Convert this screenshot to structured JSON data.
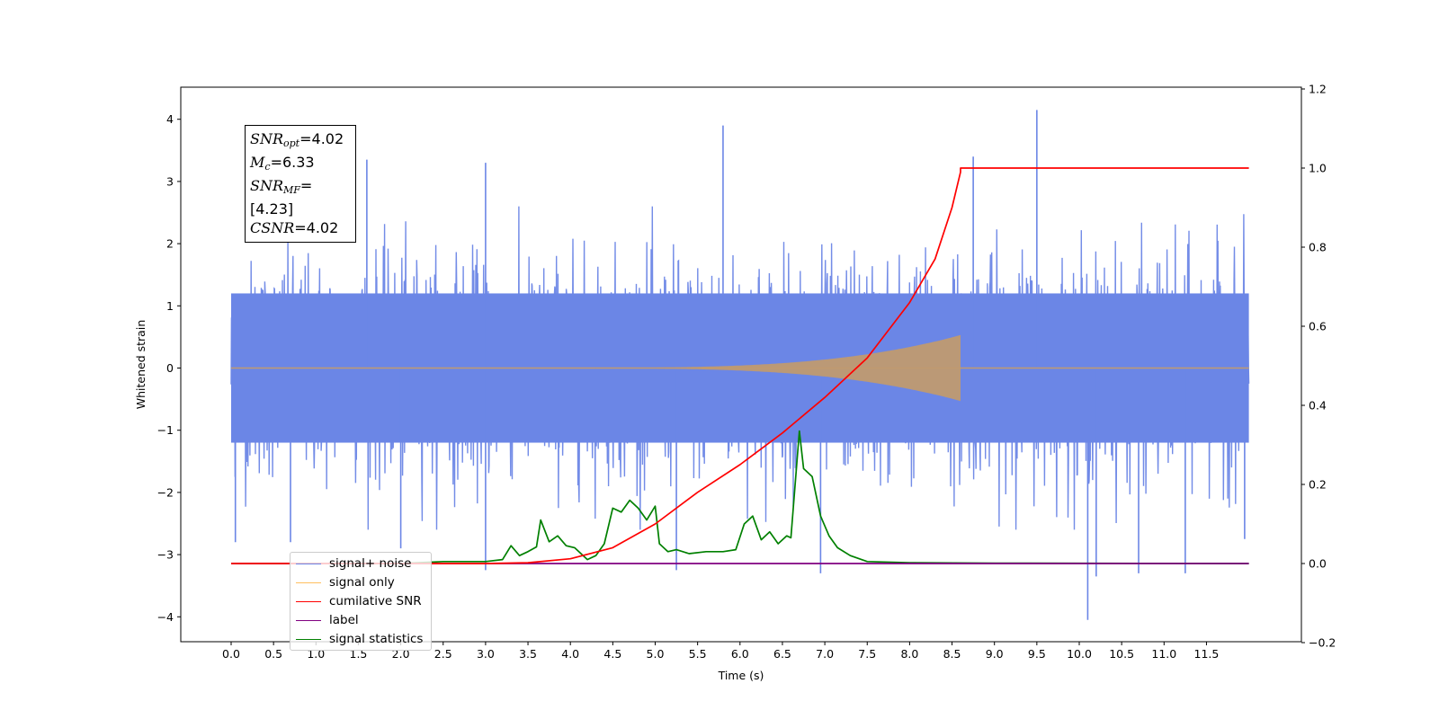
{
  "chart_data": {
    "type": "line",
    "xlabel": "Time (s)",
    "ylabel": "Whitened strain",
    "xlim": [
      -0.6,
      12.6
    ],
    "ylim": [
      -4.4,
      4.5
    ],
    "y2lim": [
      -0.2,
      1.2
    ],
    "x_ticks": [
      "0.0",
      "0.5",
      "1.0",
      "1.5",
      "2.0",
      "2.5",
      "3.0",
      "3.5",
      "4.0",
      "4.5",
      "5.0",
      "5.5",
      "6.0",
      "6.5",
      "7.0",
      "7.5",
      "8.0",
      "8.5",
      "9.0",
      "9.5",
      "10.0",
      "10.5",
      "11.0",
      "11.5"
    ],
    "y_ticks": [
      "4",
      "3",
      "2",
      "1",
      "0",
      "−1",
      "−2",
      "−3",
      "−4"
    ],
    "y2_ticks": [
      "1.2",
      "1.0",
      "0.8",
      "0.6",
      "0.4",
      "0.2",
      "0.0",
      "−0.2"
    ],
    "grid": false,
    "legend_position": "lower-left",
    "colors": {
      "signal_noise": "#6b86e6",
      "signal_only": "#c09a70",
      "cumulative_snr": "#ff0000",
      "label": "#800080",
      "signal_statistics": "#008000"
    },
    "series": [
      {
        "name": "signal+ noise",
        "axis": "left",
        "description_range": [
          -2.3,
          2.3
        ],
        "peaks": [
          {
            "x": 0.05,
            "y": -2.8
          },
          {
            "x": 0.7,
            "y": -2.8
          },
          {
            "x": 1.6,
            "y": 3.35
          },
          {
            "x": 2.0,
            "y": -2.9
          },
          {
            "x": 3.0,
            "y": 3.3
          },
          {
            "x": 3.0,
            "y": -3.25
          },
          {
            "x": 5.25,
            "y": -3.25
          },
          {
            "x": 5.8,
            "y": 3.9
          },
          {
            "x": 6.95,
            "y": -3.3
          },
          {
            "x": 8.75,
            "y": 3.4
          },
          {
            "x": 9.5,
            "y": 4.15
          },
          {
            "x": 10.1,
            "y": -4.05
          },
          {
            "x": 10.2,
            "y": -3.35
          },
          {
            "x": 10.7,
            "y": -3.3
          },
          {
            "x": 11.25,
            "y": -3.3
          },
          {
            "x": 11.95,
            "y": -2.75
          }
        ]
      },
      {
        "name": "signal only",
        "axis": "left",
        "chirp_start": 4.2,
        "chirp_end": 8.6,
        "peak_amplitude": 0.5
      },
      {
        "name": "cumilative SNR",
        "axis": "right",
        "x": [
          0.0,
          3.0,
          3.5,
          4.0,
          4.5,
          5.0,
          5.5,
          6.0,
          6.5,
          7.0,
          7.5,
          8.0,
          8.3,
          8.5,
          8.6,
          8.6,
          12.0
        ],
        "y": [
          0.0,
          0.0,
          0.002,
          0.012,
          0.04,
          0.1,
          0.18,
          0.25,
          0.33,
          0.42,
          0.52,
          0.66,
          0.77,
          0.9,
          0.99,
          1.0,
          1.0
        ]
      },
      {
        "name": "label",
        "axis": "right",
        "x": [
          0.0,
          12.0
        ],
        "y": [
          0.0,
          0.0
        ]
      },
      {
        "name": "signal statistics",
        "axis": "right",
        "x": [
          0.0,
          1.0,
          2.0,
          2.5,
          3.0,
          3.2,
          3.3,
          3.4,
          3.5,
          3.6,
          3.65,
          3.75,
          3.85,
          3.95,
          4.05,
          4.2,
          4.3,
          4.4,
          4.5,
          4.6,
          4.7,
          4.8,
          4.9,
          5.0,
          5.05,
          5.15,
          5.25,
          5.4,
          5.6,
          5.8,
          5.95,
          6.05,
          6.15,
          6.25,
          6.35,
          6.45,
          6.55,
          6.6,
          6.7,
          6.75,
          6.85,
          6.95,
          7.05,
          7.15,
          7.3,
          7.5,
          8.0,
          9.0,
          12.0
        ],
        "y": [
          0.0,
          0.0,
          0.0,
          0.005,
          0.005,
          0.01,
          0.045,
          0.02,
          0.03,
          0.042,
          0.11,
          0.055,
          0.07,
          0.045,
          0.04,
          0.01,
          0.02,
          0.05,
          0.14,
          0.13,
          0.16,
          0.14,
          0.11,
          0.145,
          0.05,
          0.03,
          0.035,
          0.025,
          0.03,
          0.03,
          0.035,
          0.1,
          0.12,
          0.06,
          0.08,
          0.05,
          0.07,
          0.065,
          0.335,
          0.24,
          0.22,
          0.12,
          0.07,
          0.04,
          0.02,
          0.005,
          0.002,
          0.001,
          0.0
        ]
      }
    ]
  },
  "stats_box": {
    "snr_opt_sym": "SNR",
    "snr_opt_sub": "opt",
    "snr_opt_val": "=4.02",
    "mc_sym": "M",
    "mc_sub": "c",
    "mc_val": "=6.33",
    "snr_mf_sym": "SNR",
    "snr_mf_sub": "MF",
    "snr_mf_val": "=[4.23]",
    "csnr_sym": "CSNR",
    "csnr_val": "=4.02"
  },
  "legend": {
    "items": [
      {
        "label": "signal+ noise",
        "color": "#6b86e6"
      },
      {
        "label": "signal only",
        "color": "#ffbf5f"
      },
      {
        "label": "cumilative SNR",
        "color": "#ff0000"
      },
      {
        "label": "label",
        "color": "#800080"
      },
      {
        "label": "signal statistics",
        "color": "#008000"
      }
    ]
  }
}
